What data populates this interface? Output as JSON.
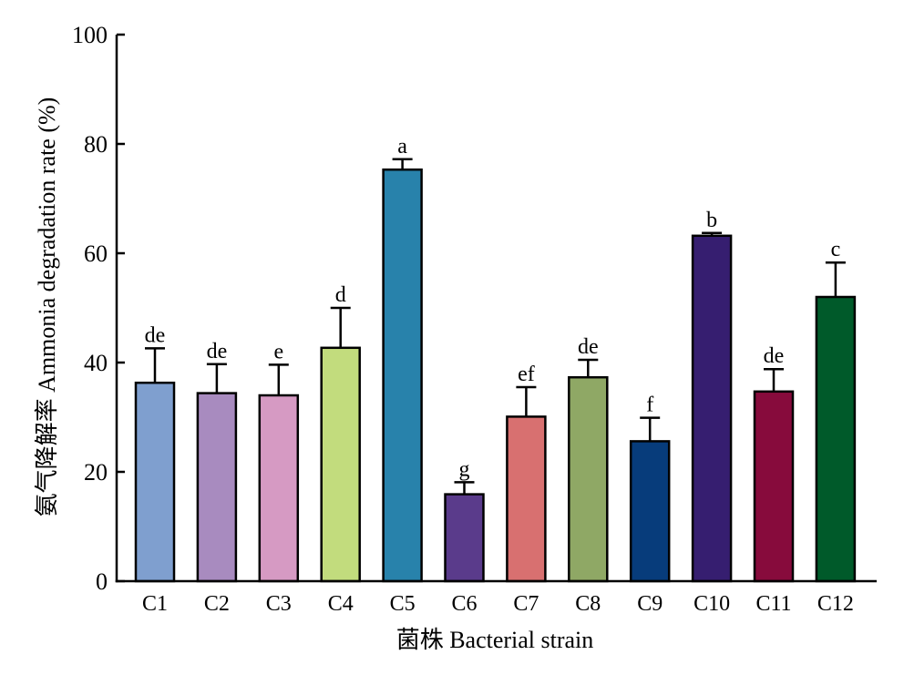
{
  "chart_data": {
    "type": "bar",
    "xlabel": "菌株 Bacterial strain",
    "ylabel": "氨气降解率 Ammonia degradation rate (%)",
    "ylim": [
      0,
      100
    ],
    "yticks": [
      0,
      20,
      40,
      60,
      80,
      100
    ],
    "categories": [
      "C1",
      "C2",
      "C3",
      "C4",
      "C5",
      "C6",
      "C7",
      "C8",
      "C9",
      "C10",
      "C11",
      "C12"
    ],
    "values": [
      36.3,
      34.4,
      34.0,
      42.7,
      75.3,
      15.9,
      30.1,
      37.3,
      25.6,
      63.2,
      34.7,
      52.0
    ],
    "errors": [
      6.3,
      5.3,
      5.6,
      7.3,
      1.9,
      2.2,
      5.4,
      3.2,
      4.3,
      0.5,
      4.1,
      6.3
    ],
    "significance_labels": [
      "de",
      "de",
      "e",
      "d",
      "a",
      "g",
      "ef",
      "de",
      "f",
      "b",
      "de",
      "c"
    ],
    "colors": [
      "#7f9fcf",
      "#a88bbf",
      "#d69ac3",
      "#c2dc7d",
      "#2882ab",
      "#5a3b8b",
      "#d87070",
      "#8fa865",
      "#073c7b",
      "#361e70",
      "#870b3c",
      "#005a2a"
    ],
    "grid": false,
    "legend": "none"
  }
}
